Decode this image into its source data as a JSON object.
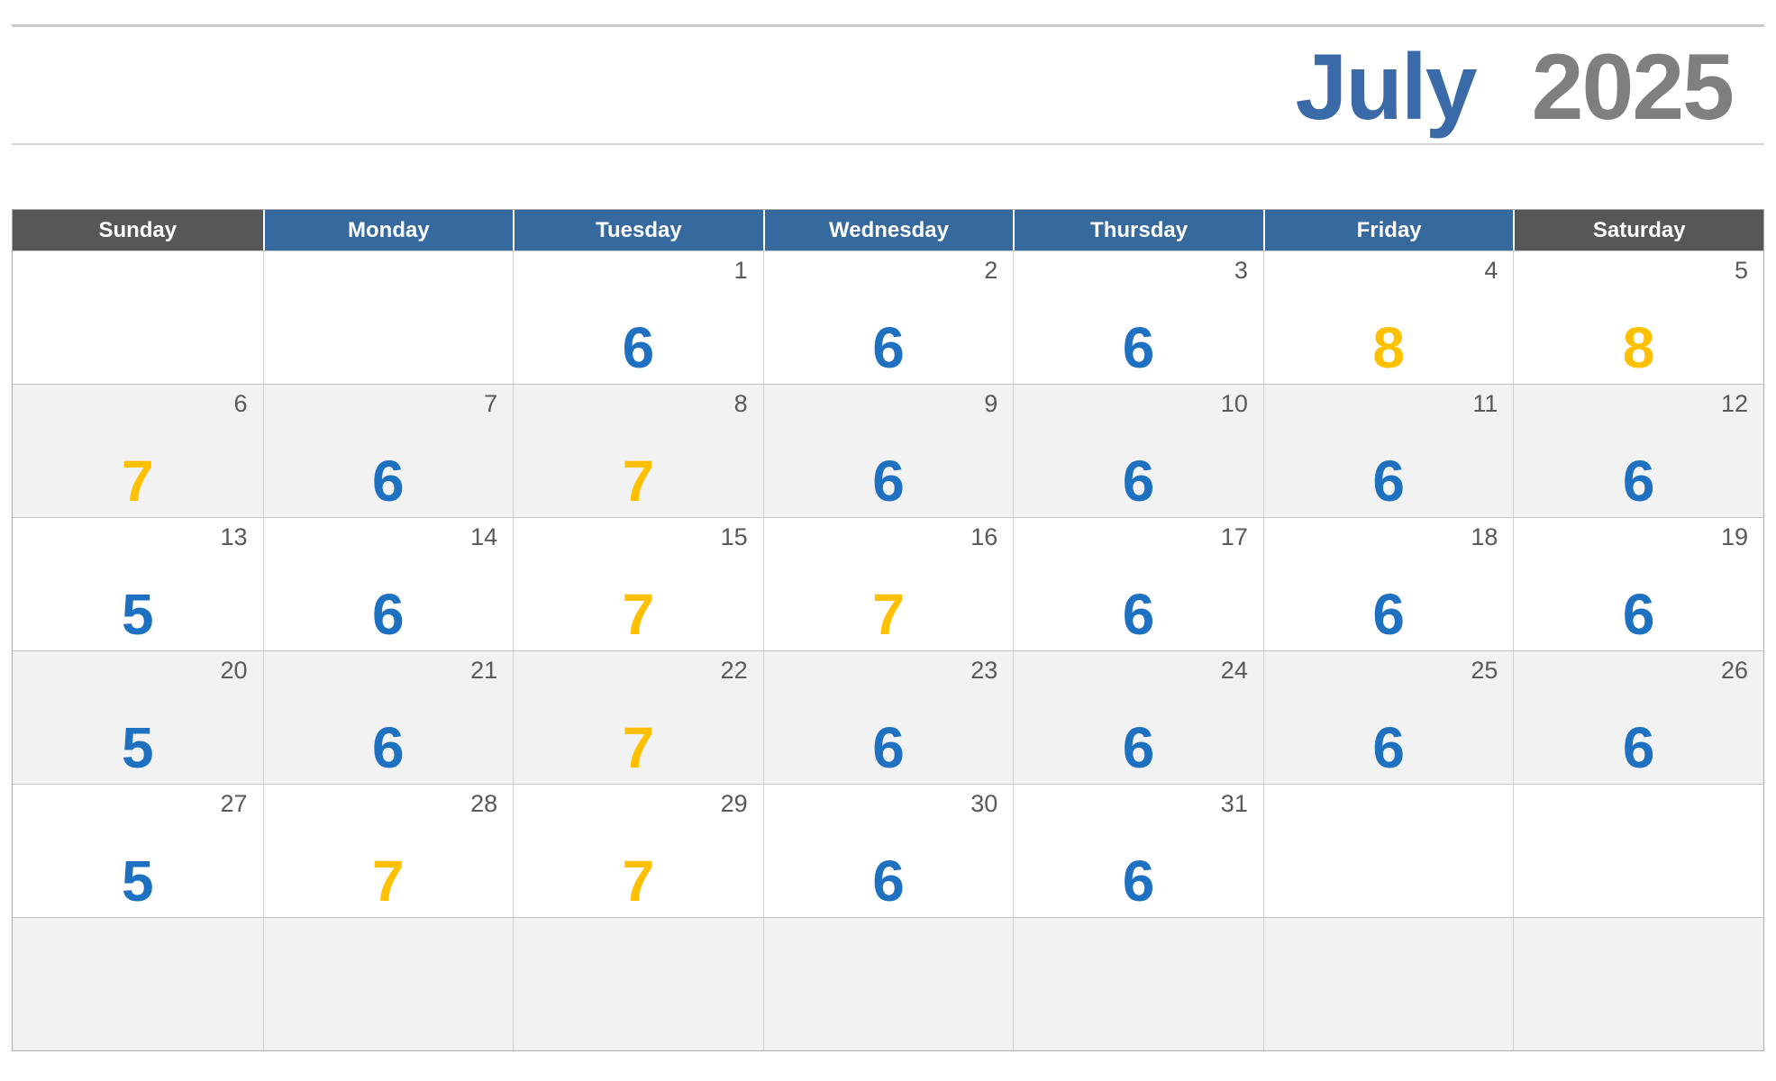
{
  "title": {
    "month": "July",
    "year": "2025"
  },
  "weekday_headers": [
    {
      "label": "Sunday",
      "style": "weekend"
    },
    {
      "label": "Monday",
      "style": "weekday"
    },
    {
      "label": "Tuesday",
      "style": "weekday"
    },
    {
      "label": "Wednesday",
      "style": "weekday"
    },
    {
      "label": "Thursday",
      "style": "weekday"
    },
    {
      "label": "Friday",
      "style": "weekday"
    },
    {
      "label": "Saturday",
      "style": "weekend"
    }
  ],
  "weeks": [
    [
      {
        "date": "",
        "value": "",
        "color": ""
      },
      {
        "date": "",
        "value": "",
        "color": ""
      },
      {
        "date": "1",
        "value": "6",
        "color": "blue"
      },
      {
        "date": "2",
        "value": "6",
        "color": "blue"
      },
      {
        "date": "3",
        "value": "6",
        "color": "blue"
      },
      {
        "date": "4",
        "value": "8",
        "color": "yellow"
      },
      {
        "date": "5",
        "value": "8",
        "color": "yellow"
      }
    ],
    [
      {
        "date": "6",
        "value": "7",
        "color": "yellow"
      },
      {
        "date": "7",
        "value": "6",
        "color": "blue"
      },
      {
        "date": "8",
        "value": "7",
        "color": "yellow"
      },
      {
        "date": "9",
        "value": "6",
        "color": "blue"
      },
      {
        "date": "10",
        "value": "6",
        "color": "blue"
      },
      {
        "date": "11",
        "value": "6",
        "color": "blue"
      },
      {
        "date": "12",
        "value": "6",
        "color": "blue"
      }
    ],
    [
      {
        "date": "13",
        "value": "5",
        "color": "blue"
      },
      {
        "date": "14",
        "value": "6",
        "color": "blue"
      },
      {
        "date": "15",
        "value": "7",
        "color": "yellow"
      },
      {
        "date": "16",
        "value": "7",
        "color": "yellow"
      },
      {
        "date": "17",
        "value": "6",
        "color": "blue"
      },
      {
        "date": "18",
        "value": "6",
        "color": "blue"
      },
      {
        "date": "19",
        "value": "6",
        "color": "blue"
      }
    ],
    [
      {
        "date": "20",
        "value": "5",
        "color": "blue"
      },
      {
        "date": "21",
        "value": "6",
        "color": "blue"
      },
      {
        "date": "22",
        "value": "7",
        "color": "yellow"
      },
      {
        "date": "23",
        "value": "6",
        "color": "blue"
      },
      {
        "date": "24",
        "value": "6",
        "color": "blue"
      },
      {
        "date": "25",
        "value": "6",
        "color": "blue"
      },
      {
        "date": "26",
        "value": "6",
        "color": "blue"
      }
    ],
    [
      {
        "date": "27",
        "value": "5",
        "color": "blue"
      },
      {
        "date": "28",
        "value": "7",
        "color": "yellow"
      },
      {
        "date": "29",
        "value": "7",
        "color": "yellow"
      },
      {
        "date": "30",
        "value": "6",
        "color": "blue"
      },
      {
        "date": "31",
        "value": "6",
        "color": "blue"
      },
      {
        "date": "",
        "value": "",
        "color": ""
      },
      {
        "date": "",
        "value": "",
        "color": ""
      }
    ],
    [
      {
        "date": "",
        "value": "",
        "color": ""
      },
      {
        "date": "",
        "value": "",
        "color": ""
      },
      {
        "date": "",
        "value": "",
        "color": ""
      },
      {
        "date": "",
        "value": "",
        "color": ""
      },
      {
        "date": "",
        "value": "",
        "color": ""
      },
      {
        "date": "",
        "value": "",
        "color": ""
      },
      {
        "date": "",
        "value": "",
        "color": ""
      }
    ]
  ],
  "colors": {
    "title_month": "#3a6ba8",
    "title_year": "#7f7f7f",
    "header_weekday_bg": "#36699e",
    "header_weekend_bg": "#575757",
    "header_text": "#ffffff",
    "value_blue": "#1e70c1",
    "value_yellow": "#ffc000",
    "date_number": "#595959",
    "alt_row_bg": "#f2f2f2",
    "grid_border": "#c3c3c3"
  }
}
